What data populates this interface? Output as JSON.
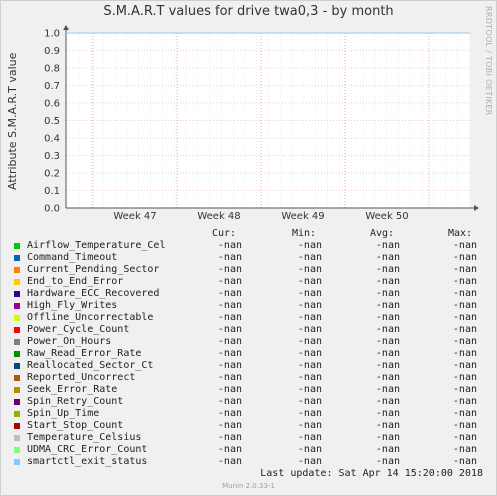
{
  "chart_data": {
    "type": "line",
    "title": "S.M.A.R.T values for drive twa0,3 - by month",
    "ylabel": "Attribute S.M.A.R.T value",
    "xlabel": "",
    "ylim": [
      0.0,
      1.0
    ],
    "yticks": [
      "0.0",
      "0.1",
      "0.2",
      "0.3",
      "0.4",
      "0.5",
      "0.6",
      "0.7",
      "0.8",
      "0.9",
      "1.0"
    ],
    "xticks": [
      "Week 47",
      "Week 48",
      "Week 49",
      "Week 50"
    ],
    "grid": true,
    "legend_placement": "bottom",
    "plot_line_color": "#aad0f0",
    "series": [
      {
        "name": "Airflow_Temperature_Cel",
        "color": "#00cc00",
        "cur": "-nan",
        "min": "-nan",
        "avg": "-nan",
        "max": "-nan"
      },
      {
        "name": "Command_Timeout",
        "color": "#0066b3",
        "cur": "-nan",
        "min": "-nan",
        "avg": "-nan",
        "max": "-nan"
      },
      {
        "name": "Current_Pending_Sector",
        "color": "#ff8000",
        "cur": "-nan",
        "min": "-nan",
        "avg": "-nan",
        "max": "-nan"
      },
      {
        "name": "End_to_End_Error",
        "color": "#ffcc00",
        "cur": "-nan",
        "min": "-nan",
        "avg": "-nan",
        "max": "-nan"
      },
      {
        "name": "Hardware_ECC_Recovered",
        "color": "#330099",
        "cur": "-nan",
        "min": "-nan",
        "avg": "-nan",
        "max": "-nan"
      },
      {
        "name": "High_Fly_Writes",
        "color": "#990099",
        "cur": "-nan",
        "min": "-nan",
        "avg": "-nan",
        "max": "-nan"
      },
      {
        "name": "Offline_Uncorrectable",
        "color": "#ccff00",
        "cur": "-nan",
        "min": "-nan",
        "avg": "-nan",
        "max": "-nan"
      },
      {
        "name": "Power_Cycle_Count",
        "color": "#ff0000",
        "cur": "-nan",
        "min": "-nan",
        "avg": "-nan",
        "max": "-nan"
      },
      {
        "name": "Power_On_Hours",
        "color": "#808080",
        "cur": "-nan",
        "min": "-nan",
        "avg": "-nan",
        "max": "-nan"
      },
      {
        "name": "Raw_Read_Error_Rate",
        "color": "#008f00",
        "cur": "-nan",
        "min": "-nan",
        "avg": "-nan",
        "max": "-nan"
      },
      {
        "name": "Reallocated_Sector_Ct",
        "color": "#00487d",
        "cur": "-nan",
        "min": "-nan",
        "avg": "-nan",
        "max": "-nan"
      },
      {
        "name": "Reported_Uncorrect",
        "color": "#b35a00",
        "cur": "-nan",
        "min": "-nan",
        "avg": "-nan",
        "max": "-nan"
      },
      {
        "name": "Seek_Error_Rate",
        "color": "#b38f00",
        "cur": "-nan",
        "min": "-nan",
        "avg": "-nan",
        "max": "-nan"
      },
      {
        "name": "Spin_Retry_Count",
        "color": "#6b006b",
        "cur": "-nan",
        "min": "-nan",
        "avg": "-nan",
        "max": "-nan"
      },
      {
        "name": "Spin_Up_Time",
        "color": "#8fb300",
        "cur": "-nan",
        "min": "-nan",
        "avg": "-nan",
        "max": "-nan"
      },
      {
        "name": "Start_Stop_Count",
        "color": "#b30000",
        "cur": "-nan",
        "min": "-nan",
        "avg": "-nan",
        "max": "-nan"
      },
      {
        "name": "Temperature_Celsius",
        "color": "#bebebe",
        "cur": "-nan",
        "min": "-nan",
        "avg": "-nan",
        "max": "-nan"
      },
      {
        "name": "UDMA_CRC_Error_Count",
        "color": "#80ff80",
        "cur": "-nan",
        "min": "-nan",
        "avg": "-nan",
        "max": "-nan"
      },
      {
        "name": "smartctl_exit_status",
        "color": "#80c9ff",
        "cur": "-nan",
        "min": "-nan",
        "avg": "-nan",
        "max": "-nan"
      }
    ]
  },
  "legend": {
    "cur_label": "Cur:",
    "min_label": "Min:",
    "avg_label": "Avg:",
    "max_label": "Max:"
  },
  "side_credit": "RRDTOOL / TOBI OETIKER",
  "last_update": "Last update:  Sat Apr 14 15:20:00 2018",
  "munin_version": "Munin 2.0.33-1"
}
